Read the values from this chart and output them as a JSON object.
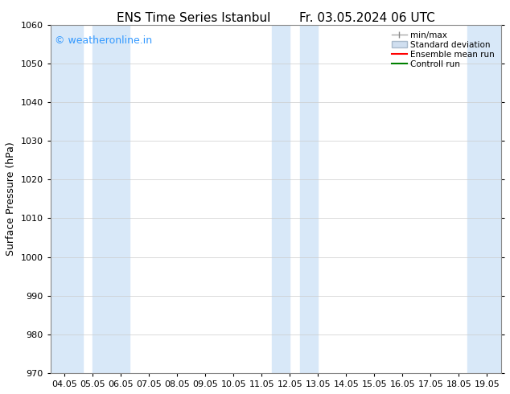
{
  "title1": "ENS Time Series Istanbul",
  "title2": "Fr. 03.05.2024 06 UTC",
  "ylabel": "Surface Pressure (hPa)",
  "ylim": [
    970,
    1060
  ],
  "yticks": [
    970,
    980,
    990,
    1000,
    1010,
    1020,
    1030,
    1040,
    1050,
    1060
  ],
  "x_tick_labels": [
    "04.05",
    "05.05",
    "06.05",
    "07.05",
    "08.05",
    "09.05",
    "10.05",
    "11.05",
    "12.05",
    "13.05",
    "14.05",
    "15.05",
    "16.05",
    "17.05",
    "18.05",
    "19.05"
  ],
  "x_tick_positions": [
    0,
    1,
    2,
    3,
    4,
    5,
    6,
    7,
    8,
    9,
    10,
    11,
    12,
    13,
    14,
    15
  ],
  "xlim": [
    -0.5,
    15.5
  ],
  "watermark": "© weatheronline.in",
  "watermark_color": "#3399ff",
  "bg_color": "#ffffff",
  "plot_bg_color": "#ffffff",
  "band_color_std": "#d8e8f8",
  "shade_positions": [
    {
      "start": -0.5,
      "end": 0.65
    },
    {
      "start": 1.0,
      "end": 2.3
    },
    {
      "start": 7.35,
      "end": 8.0
    },
    {
      "start": 8.35,
      "end": 9.0
    },
    {
      "start": 14.3,
      "end": 15.5
    }
  ],
  "legend_labels": [
    "min/max",
    "Standard deviation",
    "Ensemble mean run",
    "Controll run"
  ],
  "title_fontsize": 11,
  "axis_fontsize": 9,
  "tick_fontsize": 8,
  "watermark_fontsize": 9,
  "legend_fontsize": 7.5
}
